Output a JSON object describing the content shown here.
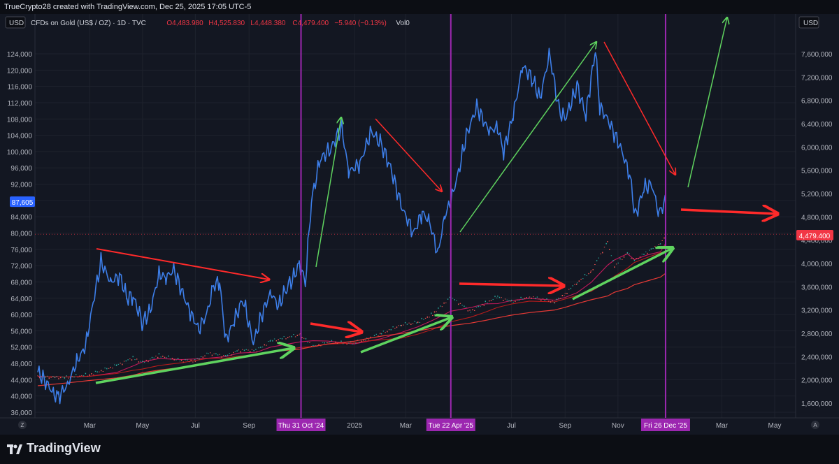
{
  "header": {
    "attribution": "TrueCrypto28 created with TradingView.com, Dec 25, 2025 17:05 UTC-5"
  },
  "left_axis": {
    "currency": "USD",
    "ticks": [
      "124,000",
      "120,000",
      "116,000",
      "112,000",
      "108,000",
      "104,000",
      "100,000",
      "96,000",
      "92,000",
      "88,000",
      "84,000",
      "80,000",
      "76,000",
      "72,000",
      "68,000",
      "64,000",
      "60,000",
      "56,000",
      "52,000",
      "48,000",
      "44,000",
      "40,000",
      "36,000"
    ],
    "tick_values": [
      124000,
      120000,
      116000,
      112000,
      108000,
      104000,
      100000,
      96000,
      92000,
      88000,
      84000,
      80000,
      76000,
      72000,
      68000,
      64000,
      60000,
      56000,
      52000,
      48000,
      44000,
      40000,
      36000
    ],
    "last_price_label": "87,605",
    "last_price_value": 87605
  },
  "right_axis": {
    "currency": "USD",
    "ticks": [
      "7,600,000",
      "7,200,000",
      "6,800,000",
      "6,400,000",
      "6,000,000",
      "5,600,000",
      "5,200,000",
      "4,800,000",
      "4,400,000",
      "4,000,000",
      "3,600,000",
      "3,200,000",
      "2,800,000",
      "2,400,000",
      "2,000,000",
      "1,600,000"
    ],
    "last_price_label": "4,479.400"
  },
  "legend": {
    "symbol": "CFDs on Gold (US$ / OZ) · 1D · TVC",
    "o_label": "O",
    "o_value": "4,483.980",
    "h_label": "H",
    "h_value": "4,525.830",
    "l_label": "L",
    "l_value": "4,448.380",
    "c_label": "C",
    "c_value": "4,479.400",
    "change": "−5.940 (−0.13%)",
    "vol_label": "Vol",
    "vol_value": "0"
  },
  "time_axis": {
    "labels": [
      "Mar",
      "May",
      "Jul",
      "Sep",
      "2025",
      "Mar",
      "Jul",
      "Sep",
      "Nov",
      "Mar",
      "May"
    ],
    "highlighted": [
      "Thu 31 Oct '24",
      "Tue 22 Apr '25",
      "Fri 26 Dec '25"
    ],
    "left_icon": "Z",
    "right_icon": "A"
  },
  "footer": {
    "brand": "TradingView"
  },
  "colors": {
    "background": "#131722",
    "bitcoin_line": "#3d7ee8",
    "gold_candles_up": "#26a69a",
    "gold_candles_down": "#ef5350",
    "annotation_green": "#5fd35f",
    "annotation_red": "#ff2a2a",
    "vertical_marker": "#9c27b0",
    "price_tag_blue": "#2962ff",
    "price_tag_red": "#f23645"
  },
  "chart_data": {
    "type": "line",
    "title": "",
    "x_start": "2024-01-01",
    "x_end": "2026-05-01",
    "series": [
      {
        "name": "",
        "axis": "left",
        "points": [
          [
            "2024-01-01",
            46000
          ],
          [
            "2024-01-10",
            43500
          ],
          [
            "2024-01-20",
            40500
          ],
          [
            "2024-01-25",
            39800
          ],
          [
            "2024-02-05",
            43000
          ],
          [
            "2024-02-15",
            48500
          ],
          [
            "2024-02-25",
            52000
          ],
          [
            "2024-03-05",
            63000
          ],
          [
            "2024-03-14",
            73000
          ],
          [
            "2024-03-25",
            68000
          ],
          [
            "2024-04-05",
            69500
          ],
          [
            "2024-04-13",
            64000
          ],
          [
            "2024-04-20",
            64500
          ],
          [
            "2024-05-01",
            58000
          ],
          [
            "2024-05-10",
            61000
          ],
          [
            "2024-05-20",
            70000
          ],
          [
            "2024-05-28",
            69000
          ],
          [
            "2024-06-06",
            71000
          ],
          [
            "2024-06-15",
            66000
          ],
          [
            "2024-06-25",
            60500
          ],
          [
            "2024-07-05",
            56500
          ],
          [
            "2024-07-14",
            60000
          ],
          [
            "2024-07-22",
            67000
          ],
          [
            "2024-07-29",
            68000
          ],
          [
            "2024-08-05",
            53500
          ],
          [
            "2024-08-15",
            58500
          ],
          [
            "2024-08-25",
            64000
          ],
          [
            "2024-09-06",
            53000
          ],
          [
            "2024-09-15",
            59500
          ],
          [
            "2024-09-26",
            65500
          ],
          [
            "2024-10-05",
            62000
          ],
          [
            "2024-10-15",
            67000
          ],
          [
            "2024-10-21",
            68500
          ],
          [
            "2024-10-29",
            72500
          ],
          [
            "2024-11-05",
            68000
          ],
          [
            "2024-11-12",
            88000
          ],
          [
            "2024-11-22",
            98000
          ],
          [
            "2024-12-05",
            101000
          ],
          [
            "2024-12-17",
            106000
          ],
          [
            "2024-12-25",
            95000
          ],
          [
            "2025-01-07",
            97000
          ],
          [
            "2025-01-20",
            105000
          ],
          [
            "2025-01-31",
            102000
          ],
          [
            "2025-02-10",
            97000
          ],
          [
            "2025-02-25",
            86000
          ],
          [
            "2025-03-10",
            80000
          ],
          [
            "2025-03-20",
            85000
          ],
          [
            "2025-03-28",
            83000
          ],
          [
            "2025-04-07",
            75000
          ],
          [
            "2025-04-15",
            84000
          ],
          [
            "2025-04-22",
            88000
          ],
          [
            "2025-05-01",
            95000
          ],
          [
            "2025-05-10",
            104000
          ],
          [
            "2025-05-22",
            111000
          ],
          [
            "2025-06-05",
            105000
          ],
          [
            "2025-06-15",
            106000
          ],
          [
            "2025-06-22",
            100000
          ],
          [
            "2025-07-03",
            109000
          ],
          [
            "2025-07-14",
            121000
          ],
          [
            "2025-07-25",
            118000
          ],
          [
            "2025-08-03",
            113000
          ],
          [
            "2025-08-14",
            124000
          ],
          [
            "2025-08-25",
            110000
          ],
          [
            "2025-09-01",
            108000
          ],
          [
            "2025-09-15",
            116000
          ],
          [
            "2025-09-25",
            109000
          ],
          [
            "2025-10-06",
            125000
          ],
          [
            "2025-10-11",
            111000
          ],
          [
            "2025-10-20",
            108000
          ],
          [
            "2025-11-04",
            101000
          ],
          [
            "2025-11-15",
            94000
          ],
          [
            "2025-11-21",
            84000
          ],
          [
            "2025-12-01",
            91000
          ],
          [
            "2025-12-10",
            92000
          ],
          [
            "2025-12-18",
            85000
          ],
          [
            "2025-12-26",
            87605
          ]
        ]
      },
      {
        "name": "CFDs on Gold (US$ / OZ)",
        "axis": "right",
        "points": [
          [
            "2024-01-01",
            2060
          ],
          [
            "2024-02-01",
            2040
          ],
          [
            "2024-03-01",
            2090
          ],
          [
            "2024-04-01",
            2250
          ],
          [
            "2024-04-20",
            2380
          ],
          [
            "2024-05-01",
            2300
          ],
          [
            "2024-05-20",
            2420
          ],
          [
            "2024-06-15",
            2330
          ],
          [
            "2024-07-01",
            2330
          ],
          [
            "2024-07-16",
            2460
          ],
          [
            "2024-08-05",
            2410
          ],
          [
            "2024-08-20",
            2510
          ],
          [
            "2024-09-10",
            2510
          ],
          [
            "2024-09-26",
            2670
          ],
          [
            "2024-10-30",
            2780
          ],
          [
            "2024-11-14",
            2570
          ],
          [
            "2024-12-01",
            2650
          ],
          [
            "2024-12-31",
            2630
          ],
          [
            "2025-01-15",
            2700
          ],
          [
            "2025-02-01",
            2800
          ],
          [
            "2025-02-24",
            2950
          ],
          [
            "2025-03-15",
            2990
          ],
          [
            "2025-04-01",
            3130
          ],
          [
            "2025-04-22",
            3420
          ],
          [
            "2025-05-15",
            3180
          ],
          [
            "2025-06-01",
            3320
          ],
          [
            "2025-06-15",
            3430
          ],
          [
            "2025-07-01",
            3340
          ],
          [
            "2025-07-22",
            3430
          ],
          [
            "2025-08-20",
            3340
          ],
          [
            "2025-09-01",
            3480
          ],
          [
            "2025-09-15",
            3680
          ],
          [
            "2025-10-01",
            3860
          ],
          [
            "2025-10-20",
            4370
          ],
          [
            "2025-10-28",
            3950
          ],
          [
            "2025-11-12",
            4180
          ],
          [
            "2025-11-20",
            4060
          ],
          [
            "2025-12-05",
            4200
          ],
          [
            "2025-12-20",
            4340
          ],
          [
            "2025-12-26",
            4479.4
          ]
        ]
      }
    ],
    "right_axis_range": [
      1400,
      7800
    ],
    "left_axis_range": [
      34000,
      126000
    ]
  }
}
